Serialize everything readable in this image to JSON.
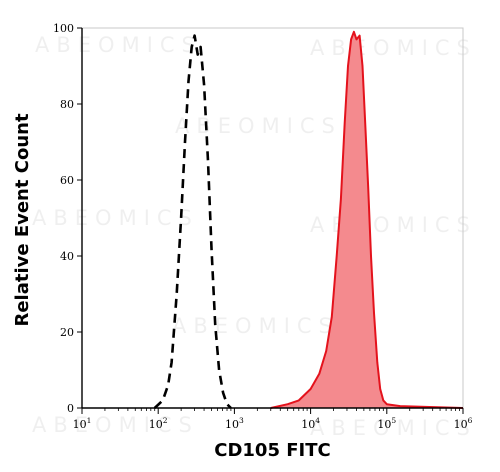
{
  "chart_data": {
    "type": "area",
    "title": "",
    "xlabel": "CD105 FITC",
    "ylabel": "Relative Event Count",
    "x_scale": "log",
    "xlim": [
      10,
      1000000
    ],
    "ylim": [
      0,
      100
    ],
    "x_ticks": [
      {
        "value": 10,
        "base": "10",
        "exp": "1"
      },
      {
        "value": 100,
        "base": "10",
        "exp": "2"
      },
      {
        "value": 1000,
        "base": "10",
        "exp": "3"
      },
      {
        "value": 10000,
        "base": "10",
        "exp": "4"
      },
      {
        "value": 100000,
        "base": "10",
        "exp": "5"
      },
      {
        "value": 1000000,
        "base": "10",
        "exp": "6"
      }
    ],
    "y_ticks": [
      "0",
      "20",
      "40",
      "60",
      "80",
      "100"
    ],
    "grid": false,
    "legend": "none",
    "series": [
      {
        "style": "dashed",
        "color": "#000000",
        "fill": "none",
        "points": [
          [
            90,
            0
          ],
          [
            115,
            2
          ],
          [
            135,
            6
          ],
          [
            150,
            12
          ],
          [
            175,
            30
          ],
          [
            200,
            50
          ],
          [
            225,
            70
          ],
          [
            250,
            86
          ],
          [
            275,
            95
          ],
          [
            300,
            98
          ],
          [
            330,
            93
          ],
          [
            360,
            95
          ],
          [
            400,
            85
          ],
          [
            450,
            65
          ],
          [
            500,
            42
          ],
          [
            560,
            22
          ],
          [
            630,
            10
          ],
          [
            710,
            4
          ],
          [
            800,
            1
          ],
          [
            900,
            0
          ]
        ]
      },
      {
        "style": "solid",
        "color": "#e4121c",
        "fill": "#f48a8e",
        "points": [
          [
            3000,
            0
          ],
          [
            5000,
            1
          ],
          [
            7000,
            2
          ],
          [
            10000,
            5
          ],
          [
            13000,
            9
          ],
          [
            16000,
            15
          ],
          [
            19000,
            24
          ],
          [
            22000,
            40
          ],
          [
            25000,
            55
          ],
          [
            28000,
            75
          ],
          [
            31000,
            90
          ],
          [
            34000,
            97
          ],
          [
            37000,
            99
          ],
          [
            40000,
            97
          ],
          [
            44000,
            98
          ],
          [
            48000,
            90
          ],
          [
            52000,
            75
          ],
          [
            57000,
            58
          ],
          [
            62000,
            40
          ],
          [
            68000,
            25
          ],
          [
            75000,
            12
          ],
          [
            82000,
            5
          ],
          [
            90000,
            2
          ],
          [
            100000,
            1
          ],
          [
            150000,
            0.5
          ],
          [
            1000000,
            0
          ]
        ]
      }
    ]
  },
  "watermark": {
    "text": "ABEOMICS"
  }
}
